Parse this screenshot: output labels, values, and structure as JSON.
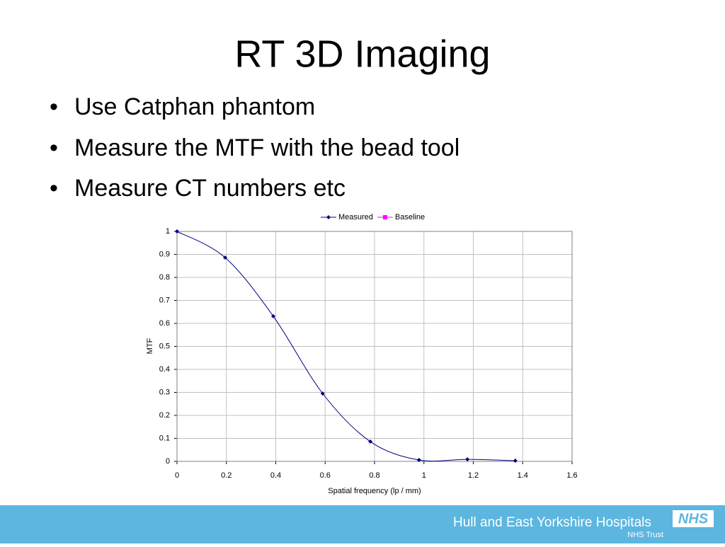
{
  "slide": {
    "title": "RT 3D Imaging",
    "bullets": [
      "Use Catphan phantom",
      "Measure the MTF with the bead tool",
      "Measure CT numbers etc"
    ],
    "footer": {
      "organisation": "Hull and East Yorkshire Hospitals",
      "subtitle": "NHS Trust",
      "logo": "NHS"
    }
  },
  "chart_data": {
    "type": "line",
    "x_label": "Spatial frequency (lp / mm)",
    "y_label": "MTF",
    "x": [
      0,
      0.195,
      0.39,
      0.59,
      0.783,
      0.98,
      1.176,
      1.37
    ],
    "series": [
      {
        "name": "Measured",
        "color": "#000080",
        "values": [
          1,
          0.886,
          0.631,
          0.295,
          0.086,
          0.006,
          0.009,
          0.003
        ]
      },
      {
        "name": "Baseline",
        "color": "#ff00ff",
        "values": [
          null,
          null,
          null,
          null,
          null,
          null,
          null,
          null
        ]
      }
    ],
    "xlim": [
      0,
      1.6
    ],
    "xticks": [
      0,
      0.2,
      0.4,
      0.6,
      0.8,
      1,
      1.2,
      1.4,
      1.6
    ],
    "ylim": [
      0,
      1
    ],
    "yticks": [
      0,
      0.1,
      0.2,
      0.3,
      0.4,
      0.5,
      0.6,
      0.7,
      0.8,
      0.9,
      1
    ],
    "grid": true,
    "legend": "top"
  }
}
